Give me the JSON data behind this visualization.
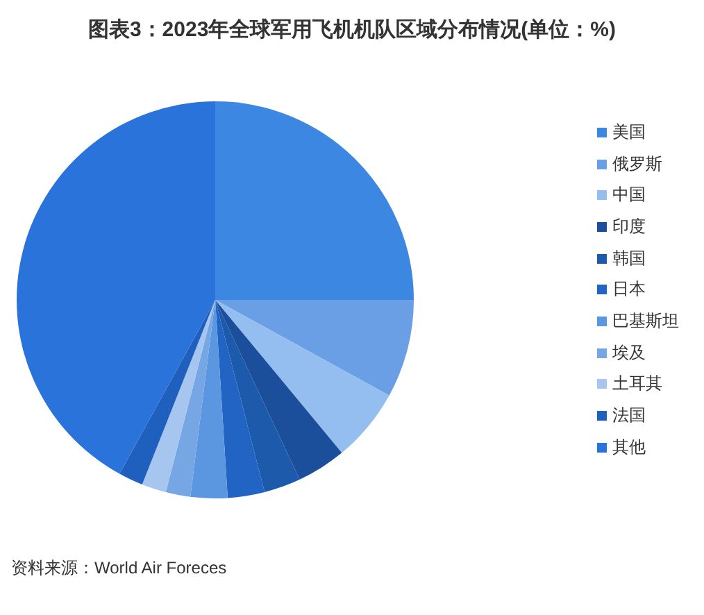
{
  "chart_data": {
    "type": "pie",
    "title": "图表3：2023年全球军用飞机机队区域分布情况(单位：%)",
    "categories": [
      "美国",
      "俄罗斯",
      "中国",
      "印度",
      "韩国",
      "日本",
      "巴基斯坦",
      "埃及",
      "土耳其",
      "法国",
      "其他"
    ],
    "values": [
      25,
      8,
      6,
      4,
      3,
      3,
      3,
      2,
      2,
      2,
      42
    ],
    "colors": [
      "#3b87e2",
      "#6a9fe6",
      "#94bdf0",
      "#1b4e9b",
      "#1d5aab",
      "#2164c4",
      "#5b96e0",
      "#77a6e4",
      "#a6c6f0",
      "#1f5fbd",
      "#2a73db"
    ],
    "legend": "right",
    "annotations": [
      "资料来源：World Air Foreces"
    ]
  }
}
